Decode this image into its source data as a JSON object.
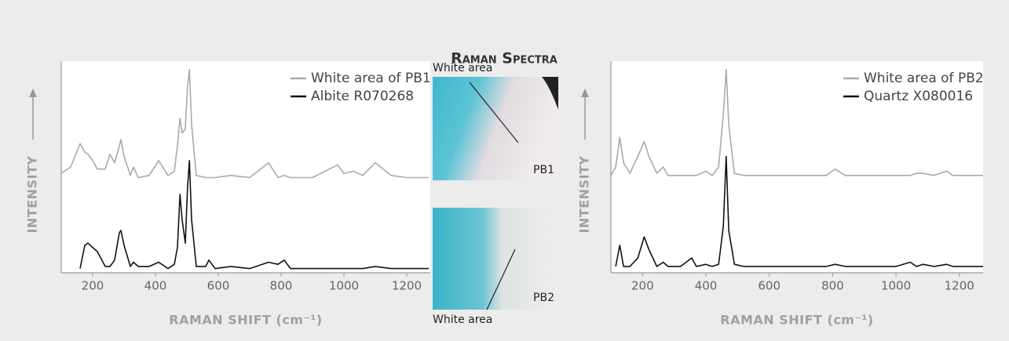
{
  "title": "Raman Spectra",
  "photos": {
    "top_label": "White area",
    "top_tag": "PB1",
    "bottom_label": "White area",
    "bottom_tag": "PB2"
  },
  "chart_data": [
    {
      "type": "line",
      "x": [
        100,
        130,
        160,
        175,
        185,
        200,
        215,
        240,
        255,
        270,
        285,
        290,
        300,
        320,
        330,
        345,
        380,
        410,
        440,
        460,
        470,
        478,
        485,
        495,
        502,
        508,
        515,
        530,
        560,
        570,
        590,
        640,
        700,
        760,
        790,
        810,
        830,
        900,
        980,
        1000,
        1030,
        1060,
        1100,
        1150,
        1200,
        1270
      ],
      "series": [
        {
          "name": "White area of PB1",
          "color": "#aaaaaa",
          "values": [
            47,
            50,
            61,
            57,
            56,
            53,
            49,
            49,
            56,
            52,
            60,
            63,
            55,
            46,
            50,
            45,
            46,
            53,
            46,
            48,
            60,
            73,
            66,
            68,
            88,
            96,
            70,
            46,
            45,
            45,
            45,
            46,
            45,
            52,
            45,
            46,
            45,
            45,
            51,
            47,
            48,
            46,
            52,
            46,
            45,
            45
          ]
        },
        {
          "name": "Albite R070268",
          "color": "#111111",
          "values": [
            null,
            null,
            2,
            13,
            14,
            12,
            10,
            3,
            3,
            6,
            19,
            20,
            13,
            3,
            5,
            3,
            3,
            5,
            2,
            4,
            12,
            37,
            25,
            14,
            40,
            53,
            25,
            3,
            3,
            6,
            2,
            3,
            2,
            5,
            4,
            6,
            2,
            2,
            2,
            2,
            2,
            2,
            3,
            2,
            2,
            2
          ]
        }
      ],
      "xlim": [
        100,
        1275
      ],
      "ylim": [
        0,
        100
      ],
      "xticks": [
        200,
        400,
        600,
        800,
        1000,
        1200
      ],
      "xlabel": "RAMAN SHIFT (cm⁻¹)",
      "ylabel": "INTENSITY",
      "legend": "upper right"
    },
    {
      "type": "line",
      "x": [
        100,
        115,
        128,
        140,
        160,
        185,
        205,
        220,
        245,
        265,
        280,
        320,
        355,
        370,
        400,
        420,
        440,
        455,
        464,
        472,
        490,
        520,
        600,
        700,
        780,
        808,
        840,
        900,
        1000,
        1045,
        1065,
        1085,
        1120,
        1160,
        1180,
        1220,
        1275
      ],
      "series": [
        {
          "name": "White area of PB2",
          "color": "#aaaaaa",
          "values": [
            46,
            50,
            64,
            52,
            47,
            55,
            62,
            55,
            47,
            50,
            46,
            46,
            46,
            46,
            48,
            46,
            50,
            75,
            96,
            70,
            47,
            46,
            46,
            46,
            46,
            49,
            46,
            46,
            46,
            46,
            47,
            47,
            46,
            48,
            46,
            46,
            46
          ]
        },
        {
          "name": "Quartz X080016",
          "color": "#111111",
          "values": [
            null,
            3,
            13,
            3,
            3,
            7,
            17,
            11,
            3,
            5,
            3,
            3,
            7,
            3,
            4,
            3,
            4,
            22,
            55,
            20,
            4,
            3,
            3,
            3,
            3,
            4,
            3,
            3,
            3,
            5,
            3,
            4,
            3,
            4,
            3,
            3,
            3
          ]
        }
      ],
      "xlim": [
        100,
        1275
      ],
      "ylim": [
        0,
        100
      ],
      "xticks": [
        200,
        400,
        600,
        800,
        1000,
        1200
      ],
      "xlabel": "RAMAN SHIFT (cm⁻¹)",
      "ylabel": "INTENSITY",
      "legend": "upper right"
    }
  ]
}
